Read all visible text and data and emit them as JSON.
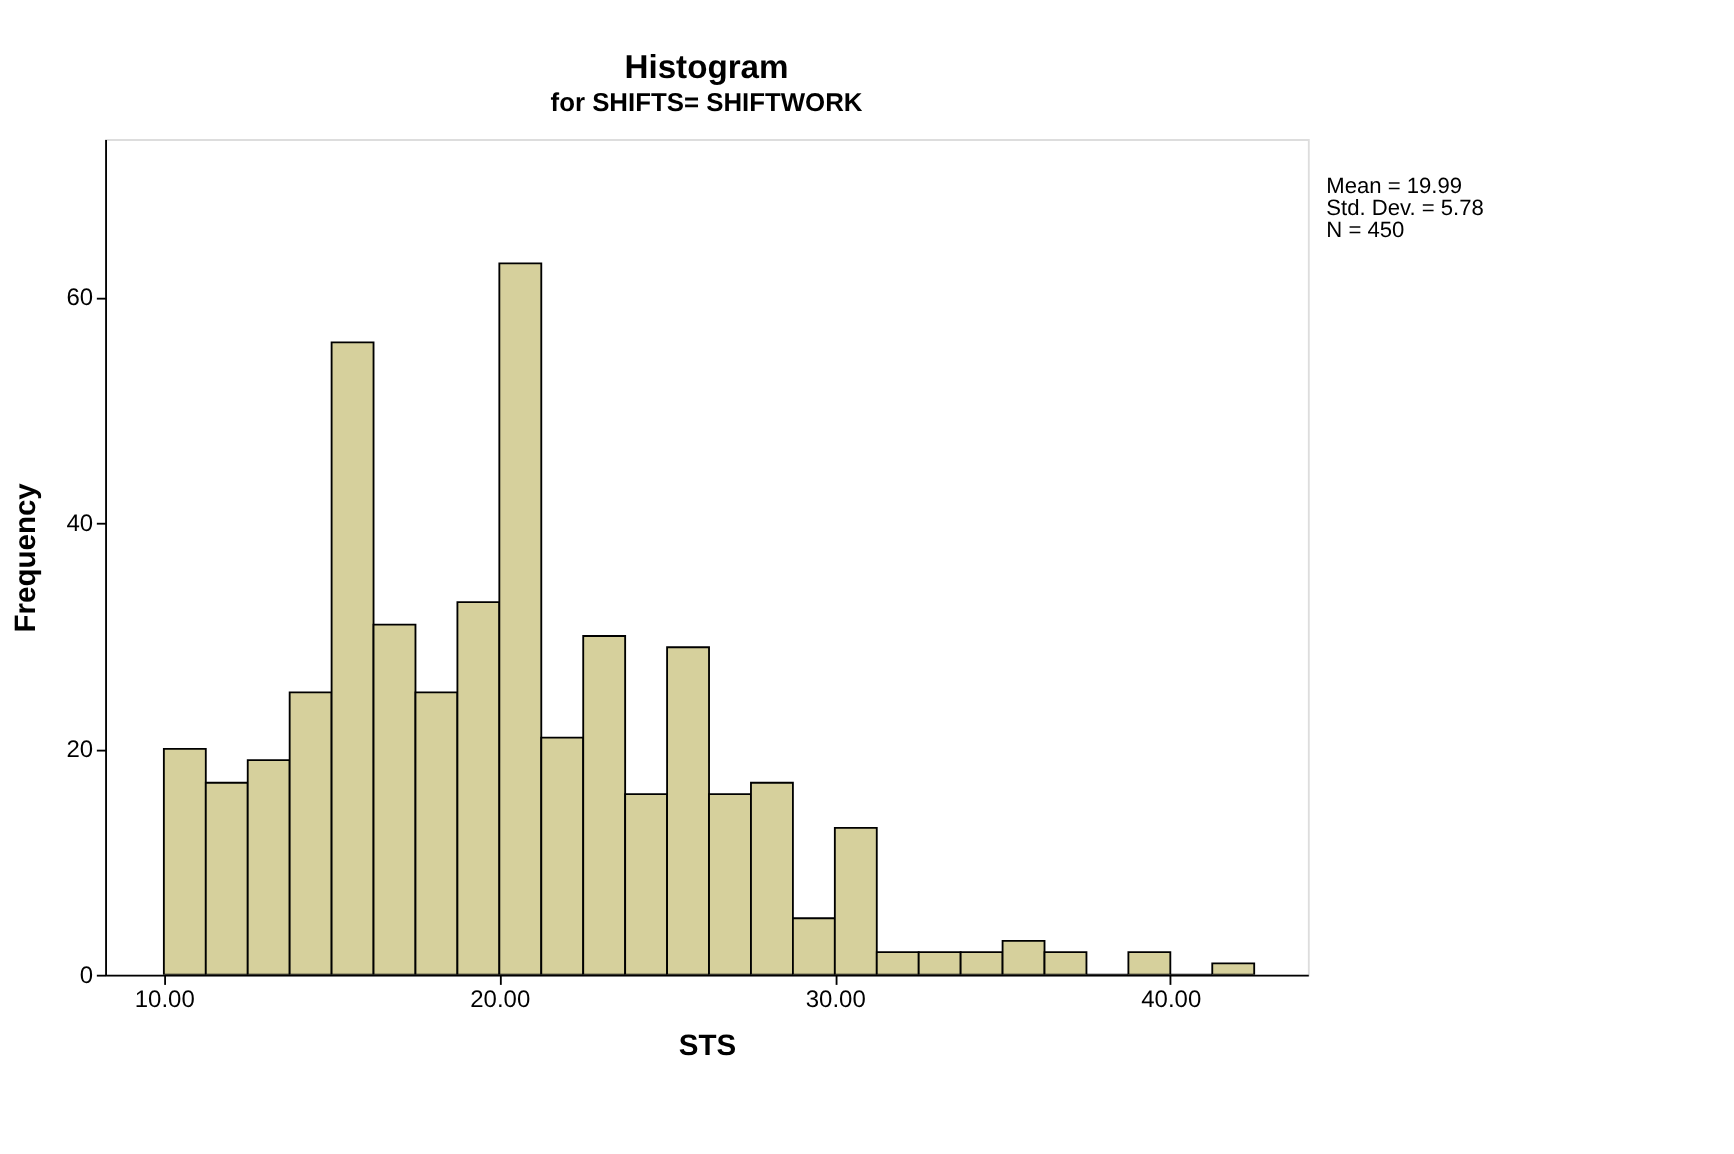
{
  "chart_data": {
    "type": "histogram",
    "title": "Histogram",
    "subtitle": "for SHIFTS= SHIFTWORK",
    "xlabel": "STS",
    "ylabel": "Frequency",
    "bins": [
      10,
      11.25,
      12.5,
      13.75,
      15,
      16.25,
      17.5,
      18.75,
      20,
      21.25,
      22.5,
      23.75,
      25,
      26.25,
      27.5,
      28.75,
      30,
      31.25,
      32.5,
      33.75,
      35,
      36.25,
      37.5,
      38.75,
      40,
      41.25,
      42.5
    ],
    "values": [
      20,
      17,
      19,
      25,
      56,
      31,
      25,
      33,
      63,
      21,
      30,
      16,
      29,
      16,
      17,
      5,
      13,
      2,
      2,
      2,
      3,
      2,
      0,
      2,
      0,
      1
    ],
    "color": "#d6d09c",
    "xlim": [
      8.25,
      44.1
    ],
    "xticks": [
      {
        "value": 10,
        "label": "10.00"
      },
      {
        "value": 20,
        "label": "20.00"
      },
      {
        "value": 30,
        "label": "30.00"
      },
      {
        "value": 40,
        "label": "40.00"
      }
    ],
    "ylim": [
      0,
      74
    ],
    "yticks": [
      0,
      20,
      40,
      60
    ],
    "grid": false,
    "annotations": [
      "Mean = 19.99",
      "Std. Dev. = 5.78",
      "N = 450"
    ]
  }
}
